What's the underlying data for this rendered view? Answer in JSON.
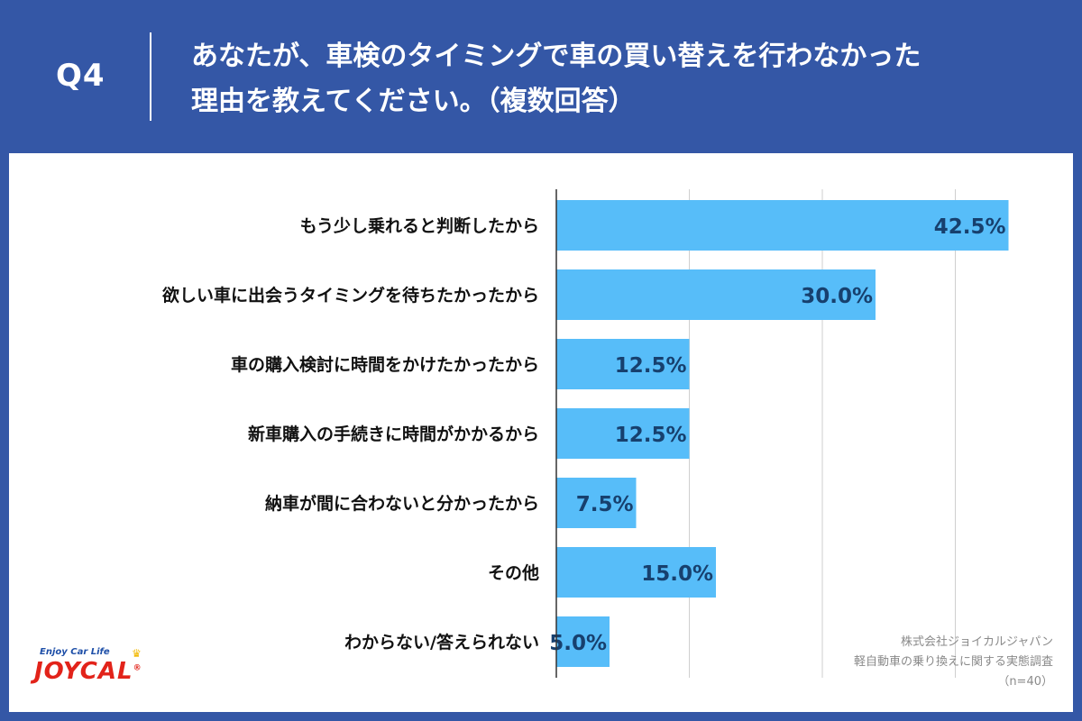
{
  "header": {
    "q_label": "Q4",
    "question_line1": "あなたが、車検のタイミングで車の買い替えを行わなかった",
    "question_line2": "理由を教えてください。（複数回答）"
  },
  "colors": {
    "background": "#3457a6",
    "bar": "#57bdf9",
    "value_label": "#17406e",
    "grid": "#cfcfcf"
  },
  "chart_data": {
    "type": "bar",
    "orientation": "horizontal",
    "categories": [
      "もう少し乗れると判断したから",
      "欲しい車に出会うタイミングを待ちたかったから",
      "車の購入検討に時間をかけたかったから",
      "新車購入の手続きに時間がかかるから",
      "納車が間に合わないと分かったから",
      "その他",
      "わからない/答えられない"
    ],
    "values": [
      42.5,
      30.0,
      12.5,
      12.5,
      7.5,
      15.0,
      5.0
    ],
    "value_labels": [
      "42.5%",
      "30.0%",
      "12.5%",
      "12.5%",
      "7.5%",
      "15.0%",
      "5.0%"
    ],
    "xlim": [
      0,
      50
    ],
    "grid": true,
    "unit": "%"
  },
  "credit": {
    "line1": "株式会社ジョイカルジャパン",
    "line2": "軽自動車の乗り換えに関する実態調査",
    "line3": "（n=40）"
  },
  "logo": {
    "tagline": "Enjoy Car Life",
    "name": "JOYCAL",
    "registered": "®"
  }
}
